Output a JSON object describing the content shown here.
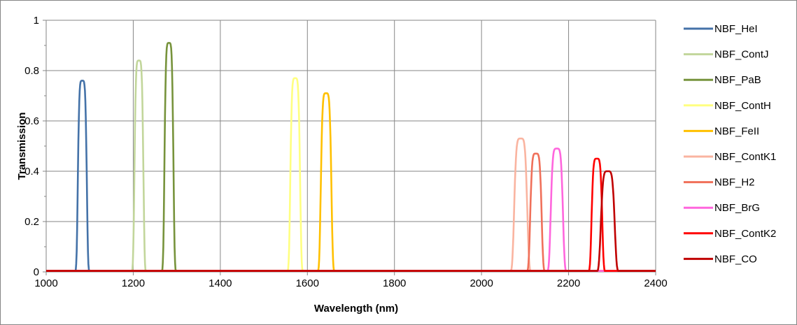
{
  "chart_data": {
    "type": "line",
    "title": "",
    "xlabel": "Wavelength (nm)",
    "ylabel": "Transmission",
    "xlim": [
      1000,
      2400
    ],
    "ylim": [
      0,
      1
    ],
    "x_ticks": [
      "1000",
      "1200",
      "1400",
      "1600",
      "1800",
      "2000",
      "2200",
      "2400"
    ],
    "y_ticks": [
      "0",
      "0.2",
      "0.4",
      "0.6",
      "0.8",
      "1"
    ],
    "grid": true,
    "legend_position": "right",
    "series": [
      {
        "name": "NBF_HeI",
        "color": "#4472a8",
        "peak_x": 1083,
        "peak_y": 0.76,
        "half_width": 11
      },
      {
        "name": "NBF_ContJ",
        "color": "#c2d69b",
        "peak_x": 1213,
        "peak_y": 0.84,
        "half_width": 11
      },
      {
        "name": "NBF_PaB",
        "color": "#77933c",
        "peak_x": 1282,
        "peak_y": 0.91,
        "half_width": 11
      },
      {
        "name": "NBF_ContH",
        "color": "#ffff80",
        "peak_x": 1572,
        "peak_y": 0.77,
        "half_width": 12
      },
      {
        "name": "NBF_FeII",
        "color": "#ffc000",
        "peak_x": 1643,
        "peak_y": 0.71,
        "half_width": 13
      },
      {
        "name": "NBF_ContK1",
        "color": "#fab4a0",
        "peak_x": 2090,
        "peak_y": 0.53,
        "half_width": 16
      },
      {
        "name": "NBF_H2",
        "color": "#f0705a",
        "peak_x": 2125,
        "peak_y": 0.47,
        "half_width": 14
      },
      {
        "name": "NBF_BrG",
        "color": "#ff66dd",
        "peak_x": 2173,
        "peak_y": 0.49,
        "half_width": 15
      },
      {
        "name": "NBF_ContK2",
        "color": "#ff0000",
        "peak_x": 2265,
        "peak_y": 0.45,
        "half_width": 13
      },
      {
        "name": "NBF_CO",
        "color": "#c00000",
        "peak_x": 2290,
        "peak_y": 0.4,
        "half_width": 17
      }
    ]
  }
}
